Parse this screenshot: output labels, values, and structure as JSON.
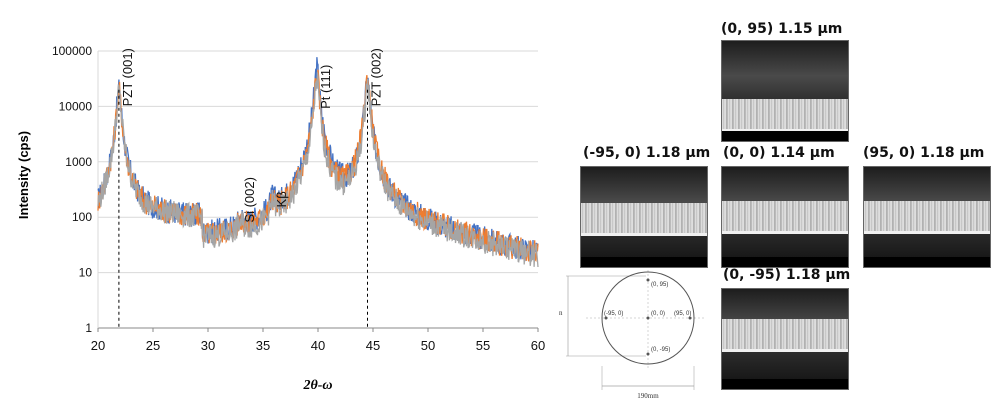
{
  "chart_data": {
    "type": "line",
    "xlabel": "2θ-ω",
    "ylabel": "Intensity (cps)",
    "xlim": [
      20,
      60
    ],
    "ylim": [
      1,
      100000
    ],
    "yscale": "log",
    "x_ticks": [
      "20",
      "25",
      "30",
      "35",
      "40",
      "45",
      "50",
      "55",
      "60"
    ],
    "y_ticks": [
      "1",
      "10",
      "100",
      "1000",
      "10000",
      "100000"
    ],
    "grid": "horizontal",
    "series_colors": [
      "#4472C4",
      "#ED7D31",
      "#A5A5A5"
    ],
    "series_peaks": [
      {
        "peaks": [
          [
            21.9,
            20000
          ],
          [
            33.0,
            30
          ],
          [
            35.9,
            100
          ],
          [
            39.9,
            50000
          ],
          [
            44.5,
            30000
          ]
        ]
      },
      {
        "peaks": [
          [
            21.9,
            19000
          ],
          [
            33.0,
            28
          ],
          [
            35.9,
            95
          ],
          [
            39.9,
            40000
          ],
          [
            44.5,
            32000
          ]
        ]
      },
      {
        "peaks": [
          [
            21.9,
            18000
          ],
          [
            33.0,
            26
          ],
          [
            35.9,
            90
          ],
          [
            39.9,
            30000
          ],
          [
            44.5,
            25000
          ]
        ]
      }
    ],
    "annotations": [
      {
        "text": "PZT (001)",
        "x": 21.9,
        "y": 10000,
        "dashed_line": true
      },
      {
        "text": "Si (002)",
        "x": 33.0,
        "y": 80,
        "dashed_line": false
      },
      {
        "text": "Kβ",
        "x": 35.9,
        "y": 150,
        "dashed_line": false
      },
      {
        "text": "Pt (111)",
        "x": 39.9,
        "y": 9000,
        "dashed_line": false
      },
      {
        "text": "PZT (002)",
        "x": 44.5,
        "y": 10000,
        "dashed_line": true
      }
    ]
  },
  "sem_panels": [
    {
      "label": "(0, 95) 1.15 μm"
    },
    {
      "label": "(-95, 0) 1.18 μm"
    },
    {
      "label": "(0, 0) 1.14 μm"
    },
    {
      "label": "(95, 0) 1.18 μm"
    },
    {
      "label": "(0, -95) 1.18 μm"
    }
  ],
  "wafer_diagram": {
    "points": [
      "(0, 95)",
      "(-95, 0)",
      "(0, 0)",
      "(95, 0)",
      "(0, -95)"
    ],
    "dimension": "190mm",
    "side_label": "n"
  }
}
